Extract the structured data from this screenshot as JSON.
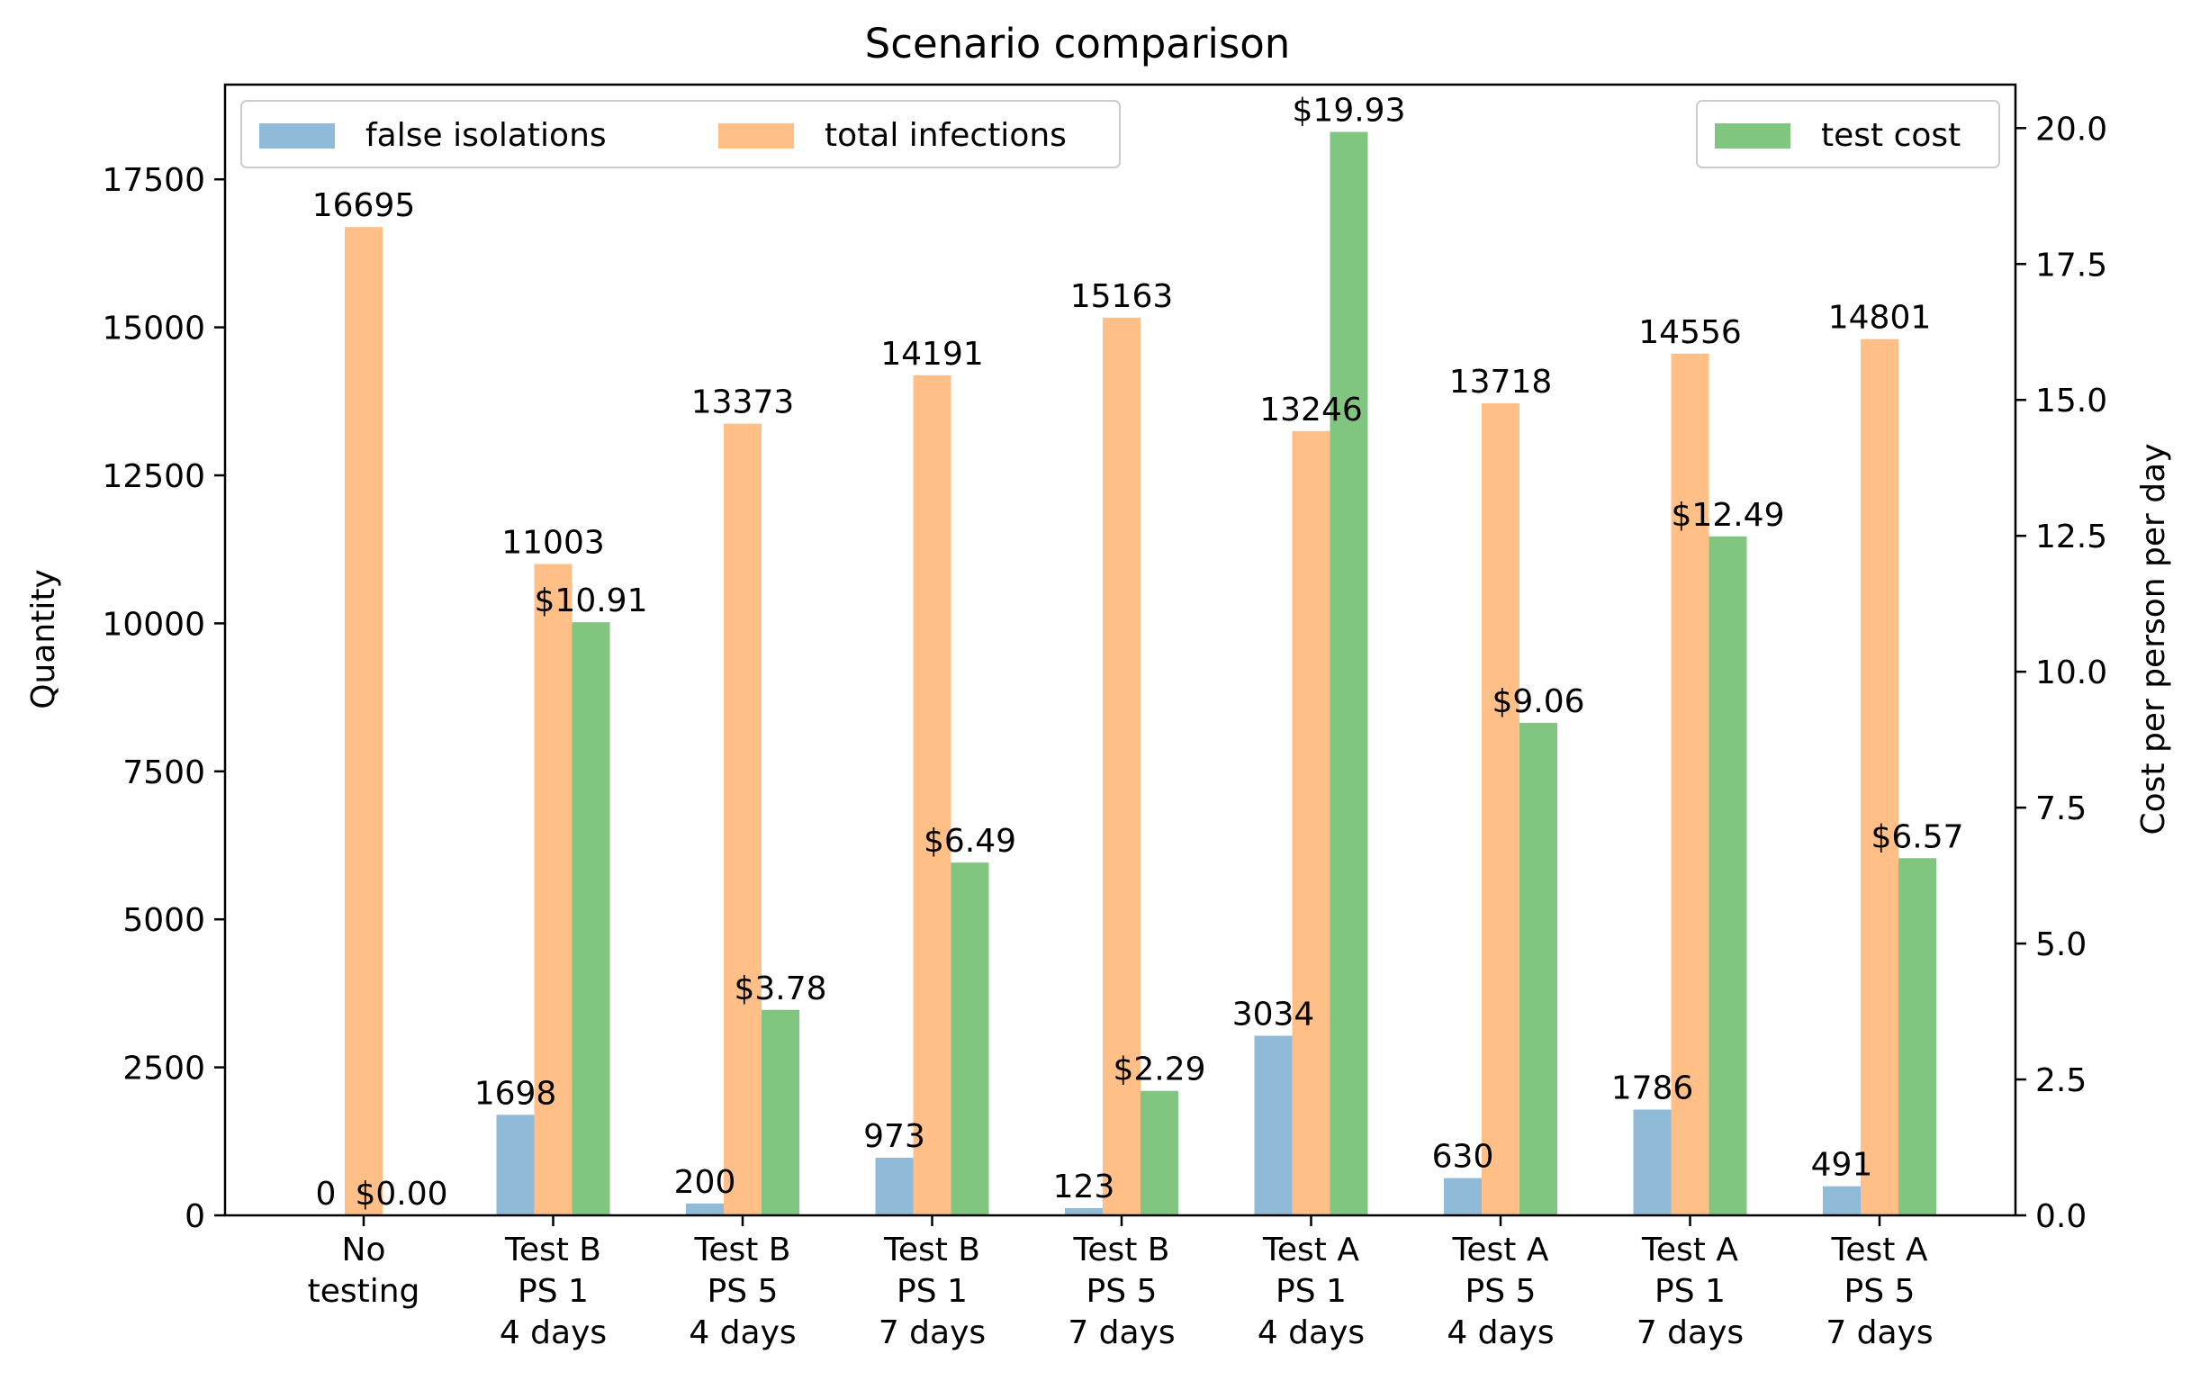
{
  "chart_data": {
    "type": "bar",
    "title": "Scenario comparison",
    "ylabel_left": "Quantity",
    "ylabel_right": "Cost per person per day",
    "xlabel": "",
    "categories": [
      [
        "No",
        "testing"
      ],
      [
        "Test B",
        "PS 1",
        "4 days"
      ],
      [
        "Test B",
        "PS 5",
        "4 days"
      ],
      [
        "Test B",
        "PS 1",
        "7 days"
      ],
      [
        "Test B",
        "PS 5",
        "7 days"
      ],
      [
        "Test A",
        "PS 1",
        "4 days"
      ],
      [
        "Test A",
        "PS 5",
        "4 days"
      ],
      [
        "Test A",
        "PS 1",
        "7 days"
      ],
      [
        "Test A",
        "PS 5",
        "7 days"
      ]
    ],
    "ylim_left": [
      0,
      19100
    ],
    "ylim_right": [
      0,
      20.8
    ],
    "yticks_left": [
      0,
      2500,
      5000,
      7500,
      10000,
      12500,
      15000,
      17500
    ],
    "ytick_labels_left": [
      "0",
      "2500",
      "5000",
      "7500",
      "10000",
      "12500",
      "15000",
      "17500"
    ],
    "yticks_right": [
      0,
      2.5,
      5,
      7.5,
      10,
      12.5,
      15,
      17.5,
      20
    ],
    "ytick_labels_right": [
      "0.0",
      "2.5",
      "5.0",
      "7.5",
      "10.0",
      "12.5",
      "15.0",
      "17.5",
      "20.0"
    ],
    "series": [
      {
        "name": "false isolations",
        "axis": "left",
        "color": "#1f77b4",
        "opacity": 0.5,
        "values": [
          0,
          1698,
          200,
          973,
          123,
          3034,
          630,
          1786,
          491
        ],
        "labels": [
          "0",
          "1698",
          "200",
          "973",
          "123",
          "3034",
          "630",
          "1786",
          "491"
        ]
      },
      {
        "name": "total infections",
        "axis": "left",
        "color": "#ff7f0e",
        "opacity": 0.5,
        "values": [
          16695,
          11003,
          13373,
          14191,
          15163,
          13246,
          13718,
          14556,
          14801
        ],
        "labels": [
          "16695",
          "11003",
          "13373",
          "14191",
          "15163",
          "13246",
          "13718",
          "14556",
          "14801"
        ]
      },
      {
        "name": "test cost",
        "axis": "right",
        "color": "#2ca02c",
        "opacity": 0.6,
        "values": [
          0,
          10.91,
          3.78,
          6.49,
          2.29,
          19.93,
          9.06,
          12.49,
          6.57
        ],
        "labels": [
          "$0.00",
          "$10.91",
          "$3.78",
          "$6.49",
          "$2.29",
          "$19.93",
          "$9.06",
          "$12.49",
          "$6.57"
        ]
      }
    ],
    "legend_left": {
      "placement": "upper-left",
      "entries": [
        "false isolations",
        "total infections"
      ]
    },
    "legend_right": {
      "placement": "upper-right",
      "entries": [
        "test cost"
      ]
    }
  }
}
